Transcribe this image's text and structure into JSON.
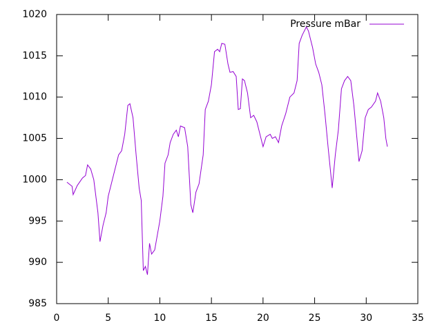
{
  "chart_data": {
    "type": "line",
    "x": [
      1,
      1.5,
      1.6,
      2,
      2.5,
      2.8,
      3,
      3.3,
      3.6,
      4,
      4.2,
      4.5,
      4.8,
      5,
      5.5,
      6,
      6.3,
      6.6,
      6.9,
      7.1,
      7.4,
      7.7,
      8,
      8.2,
      8.4,
      8.6,
      8.8,
      9,
      9.2,
      9.5,
      10,
      10.3,
      10.5,
      10.8,
      11,
      11.3,
      11.6,
      11.8,
      12,
      12.4,
      12.7,
      13,
      13.2,
      13.5,
      13.8,
      14.2,
      14.4,
      14.7,
      15,
      15.3,
      15.6,
      15.8,
      16,
      16.3,
      16.6,
      16.8,
      17.1,
      17.4,
      17.6,
      17.8,
      18,
      18.2,
      18.5,
      18.8,
      19.1,
      19.4,
      19.7,
      20,
      20.3,
      20.7,
      20.9,
      21.2,
      21.5,
      21.8,
      22.2,
      22.6,
      23,
      23.3,
      23.5,
      23.8,
      24.2,
      24.4,
      24.8,
      25.1,
      25.4,
      25.7,
      26,
      26.3,
      26.7,
      27,
      27.3,
      27.6,
      27.9,
      28.2,
      28.5,
      28.8,
      29.1,
      29.3,
      29.6,
      29.9,
      30.2,
      30.5,
      30.9,
      31.1,
      31.4,
      31.7,
      31.9,
      32.05
    ],
    "series": [
      {
        "name": "Pressure mBar",
        "color": "#9400d3",
        "values": [
          999.7,
          999.2,
          998.2,
          999.3,
          1000.2,
          1000.5,
          1001.8,
          1001.3,
          1000,
          996,
          992.5,
          994.5,
          996,
          998,
          1000.5,
          1003,
          1003.5,
          1005.5,
          1009,
          1009.2,
          1007.5,
          1003,
          999,
          997.5,
          989,
          989.5,
          988.5,
          992.3,
          991,
          991.5,
          995,
          998,
          1002,
          1003,
          1004.5,
          1005.5,
          1006,
          1005.2,
          1006.5,
          1006.3,
          1004,
          997,
          996,
          998.5,
          999.5,
          1003,
          1008.5,
          1009.5,
          1011.5,
          1015.5,
          1015.8,
          1015.5,
          1016.5,
          1016.4,
          1014,
          1013,
          1013.1,
          1012.5,
          1008.5,
          1008.6,
          1012.2,
          1012,
          1010.5,
          1007.5,
          1007.8,
          1007,
          1005.5,
          1004,
          1005.2,
          1005.5,
          1005,
          1005.2,
          1004.5,
          1006.5,
          1008,
          1010,
          1010.5,
          1012,
          1016.5,
          1017.5,
          1018.5,
          1018,
          1016,
          1014,
          1013,
          1011.5,
          1008,
          1004,
          999,
          1003,
          1006,
          1011,
          1012,
          1012.5,
          1012,
          1009,
          1005,
          1002.2,
          1003.5,
          1007.5,
          1008.5,
          1008.8,
          1009.5,
          1010.5,
          1009.5,
          1007.5,
          1005,
          1004
        ]
      }
    ],
    "xlim": [
      0,
      35
    ],
    "xticks": [
      0,
      5,
      10,
      15,
      20,
      25,
      30,
      35
    ],
    "ylim": [
      985,
      1020
    ],
    "yticks": [
      985,
      990,
      995,
      1000,
      1005,
      1010,
      1015,
      1020
    ],
    "grid": false,
    "legend": "top-right"
  }
}
